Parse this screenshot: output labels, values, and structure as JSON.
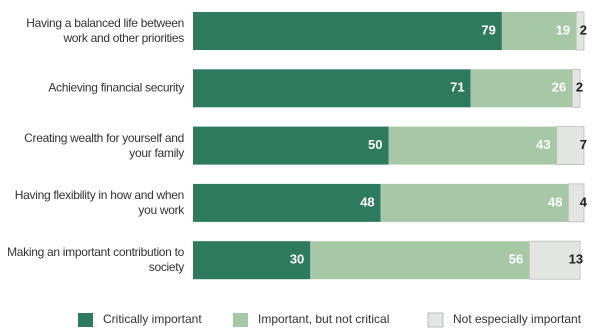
{
  "chart_data": {
    "type": "stacked_bar_horizontal",
    "categories": [
      "Having a balanced life between work and other priorities",
      "Achieving financial security",
      "Creating wealth for yourself and your family",
      "Having flexibility in how and when you work",
      "Making an important contribution to society"
    ],
    "series": [
      {
        "name": "Critically important",
        "color": "#2d7a5f",
        "values": [
          79,
          71,
          50,
          48,
          30
        ]
      },
      {
        "name": "Important, but not critical",
        "color": "#a6c8a6",
        "values": [
          19,
          26,
          43,
          48,
          56
        ]
      },
      {
        "name": "Not especially important",
        "color": "#e3e6e0",
        "values": [
          2,
          2,
          7,
          4,
          13
        ]
      }
    ],
    "xlim": [
      0,
      100
    ]
  }
}
